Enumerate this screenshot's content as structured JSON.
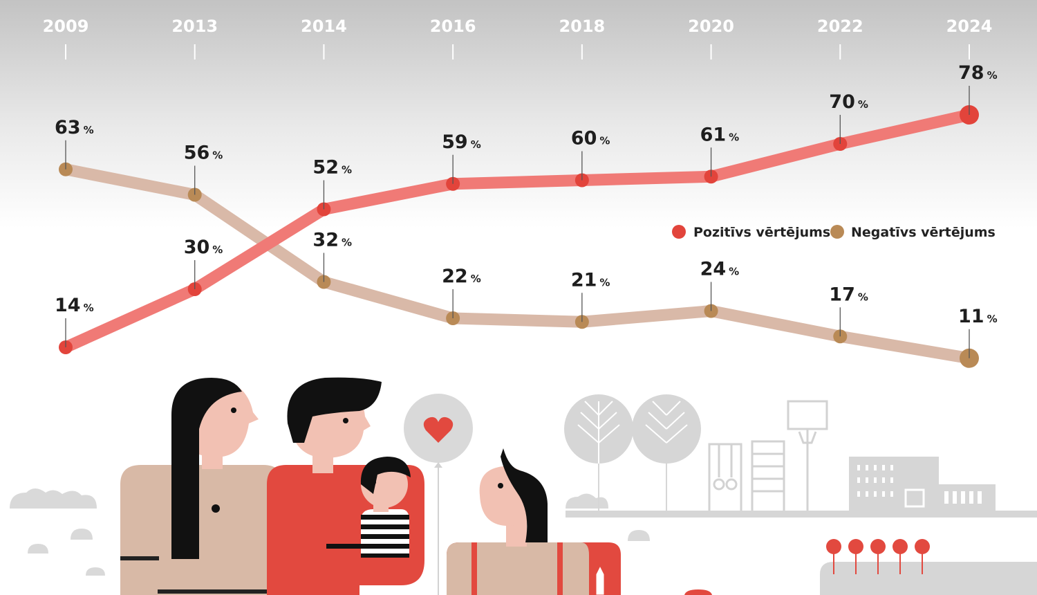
{
  "chart_data": {
    "type": "line",
    "title": "",
    "xlabel": "",
    "ylabel": "",
    "ylim": [
      0,
      100
    ],
    "categories": [
      "2009",
      "2013",
      "2014",
      "2016",
      "2018",
      "2020",
      "2022",
      "2024"
    ],
    "unit": "%",
    "series": [
      {
        "name": "Pozitīvs vērtējums",
        "color": "#f07a76",
        "dot_color": "#e2443b",
        "values": [
          14,
          30,
          52,
          59,
          60,
          61,
          70,
          78
        ]
      },
      {
        "name": "Negatīvs vērtējums",
        "color": "#d9b9a8",
        "dot_color": "#b98a56",
        "values": [
          63,
          56,
          32,
          22,
          21,
          24,
          17,
          11
        ]
      }
    ],
    "legend": {
      "position": "middle-right"
    },
    "grid": false
  },
  "colors": {
    "background_top": "#c6c6c6",
    "background_bottom": "#ffffff",
    "positive": "#f07a76",
    "negative": "#d9b9a8",
    "illustration_grey": "#d6d6d6",
    "illustration_red": "#e2493f",
    "illustration_beige": "#d8b9a6",
    "skin": "#f2c1b3",
    "hair": "#111111"
  },
  "illustration": {
    "description_icons": [
      "family-illustration",
      "balloon-heart-icon",
      "trees-icon",
      "playground-icon",
      "school-building-icon"
    ]
  }
}
